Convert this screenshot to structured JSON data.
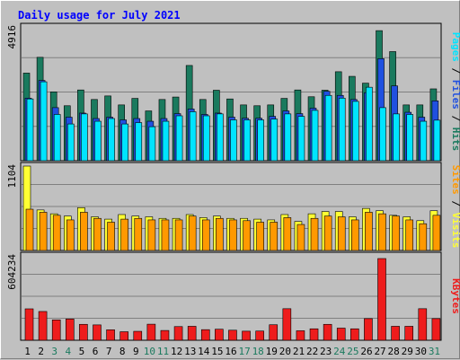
{
  "chart_data": {
    "type": "bar",
    "title": "Daily usage for July 2021",
    "categories": [
      "1",
      "2",
      "3",
      "4",
      "5",
      "6",
      "7",
      "8",
      "9",
      "10",
      "11",
      "12",
      "13",
      "14",
      "15",
      "16",
      "17",
      "18",
      "19",
      "20",
      "21",
      "22",
      "23",
      "24",
      "25",
      "26",
      "27",
      "28",
      "29",
      "30",
      "31"
    ],
    "weekend_days": [
      "3",
      "4",
      "10",
      "11",
      "17",
      "18",
      "24",
      "25",
      "31"
    ],
    "panels": [
      {
        "id": "traffic",
        "max_label": "4916",
        "ymax": 4916,
        "series": [
          {
            "name": "Hits",
            "color": "#1a7a5e",
            "values": [
              3220,
              3800,
              2530,
              2020,
              2600,
              2250,
              2380,
              2050,
              2290,
              1830,
              2250,
              2340,
              3500,
              2250,
              2590,
              2270,
              2050,
              2020,
              2050,
              2290,
              2600,
              2350,
              2590,
              3270,
              3100,
              2850,
              4780,
              4010,
              2050,
              2050,
              2640
            ]
          },
          {
            "name": "Files",
            "color": "#2050e0",
            "values": [
              2300,
              2950,
              1950,
              1600,
              1750,
              1550,
              1600,
              1500,
              1550,
              1450,
              1550,
              1730,
              1900,
              1700,
              1750,
              1600,
              1560,
              1560,
              1630,
              1830,
              1730,
              1930,
              2550,
              2400,
              2250,
              2500,
              3750,
              2750,
              1780,
              1600,
              2200
            ]
          },
          {
            "name": "Pages",
            "color": "#00e4ff",
            "values": [
              2270,
              2900,
              1700,
              1350,
              1720,
              1450,
              1550,
              1350,
              1400,
              1250,
              1450,
              1650,
              1800,
              1650,
              1720,
              1500,
              1500,
              1500,
              1530,
              1720,
              1630,
              1850,
              2400,
              2300,
              2180,
              2700,
              1950,
              1720,
              1700,
              1450,
              1490
            ]
          }
        ]
      },
      {
        "id": "visitors",
        "max_label": "1104",
        "ymax": 1104,
        "series": [
          {
            "name": "Visits",
            "color": "#ffff33",
            "values": [
              1104,
              530,
              480,
              450,
              560,
              440,
              410,
              470,
              450,
              440,
              420,
              420,
              470,
              430,
              450,
              420,
              420,
              410,
              400,
              470,
              380,
              480,
              510,
              510,
              440,
              550,
              520,
              460,
              440,
              390,
              520
            ]
          },
          {
            "name": "Sites",
            "color": "#ff9900",
            "values": [
              540,
              500,
              460,
              400,
              500,
              420,
              370,
              410,
              420,
              400,
              400,
              400,
              450,
              400,
              420,
              400,
              390,
              370,
              370,
              430,
              340,
              420,
              450,
              440,
              400,
              500,
              480,
              450,
              400,
              350,
              460
            ]
          }
        ]
      },
      {
        "id": "kbytes",
        "max_label": "604234",
        "ymax": 604234,
        "series": [
          {
            "name": "KBytes",
            "color": "#ee1c1c",
            "values": [
              225000,
              206000,
              146000,
              152000,
              114000,
              110000,
              75000,
              61000,
              64000,
              115000,
              70000,
              98000,
              100000,
              76000,
              79000,
              72000,
              65000,
              66000,
              111000,
              226000,
              68000,
              82000,
              114000,
              87000,
              82000,
              155000,
              585000,
              100000,
              100000,
              226000,
              155000
            ]
          }
        ]
      }
    ],
    "right_labels": [
      {
        "panel": "traffic",
        "parts": [
          {
            "text": "Pages",
            "color": "#00e4ff"
          },
          {
            "text": " / ",
            "color": "#000000"
          },
          {
            "text": "Files",
            "color": "#2050e0"
          },
          {
            "text": " / ",
            "color": "#000000"
          },
          {
            "text": "Hits",
            "color": "#1a7a5e"
          }
        ]
      },
      {
        "panel": "visitors",
        "parts": [
          {
            "text": "Sites",
            "color": "#ff9900"
          },
          {
            "text": " / ",
            "color": "#000000"
          },
          {
            "text": "Visits",
            "color": "#ffff33"
          }
        ]
      },
      {
        "panel": "kbytes",
        "parts": [
          {
            "text": "KBytes",
            "color": "#ee1c1c"
          }
        ]
      }
    ],
    "colors": {
      "title": "#0000ff",
      "plot_bg": "#c0c0c0",
      "grid": "#808080",
      "weekday_label": "#000000",
      "weekend_label": "#1a7a5e"
    },
    "grid": true,
    "legend": "right"
  }
}
